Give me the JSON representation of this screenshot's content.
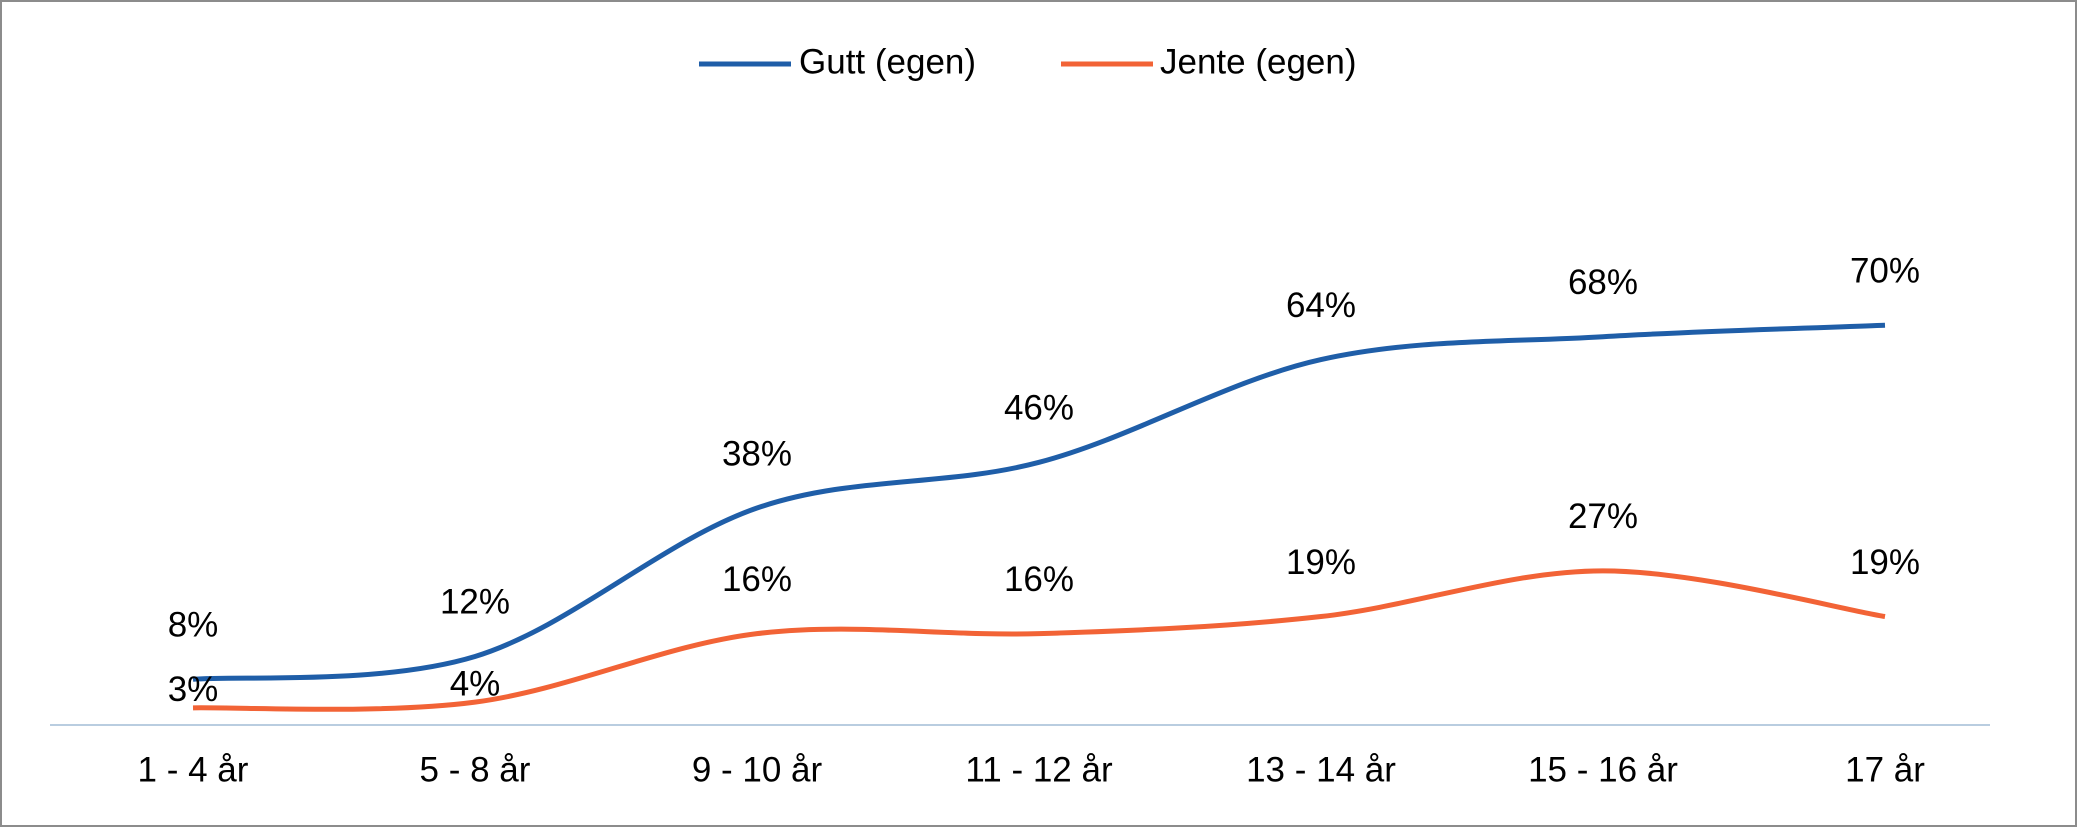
{
  "chart_data": {
    "type": "line",
    "categories": [
      "1 - 4 år",
      "5 - 8 år",
      "9 - 10 år",
      "11 - 12 år",
      "13 - 14 år",
      "15 - 16 år",
      "17 år"
    ],
    "series": [
      {
        "name": "Gutt (egen)",
        "color": "#1f5ea8",
        "values": [
          8,
          12,
          38,
          46,
          64,
          68,
          70
        ],
        "value_labels": [
          "8%",
          "12%",
          "38%",
          "46%",
          "64%",
          "68%",
          "70%"
        ]
      },
      {
        "name": "Jente (egen)",
        "color": "#f26336",
        "values": [
          3,
          4,
          16,
          16,
          19,
          27,
          19
        ],
        "value_labels": [
          "3%",
          "4%",
          "16%",
          "16%",
          "19%",
          "27%",
          "19%"
        ]
      }
    ],
    "legend": "top",
    "smooth": true
  }
}
